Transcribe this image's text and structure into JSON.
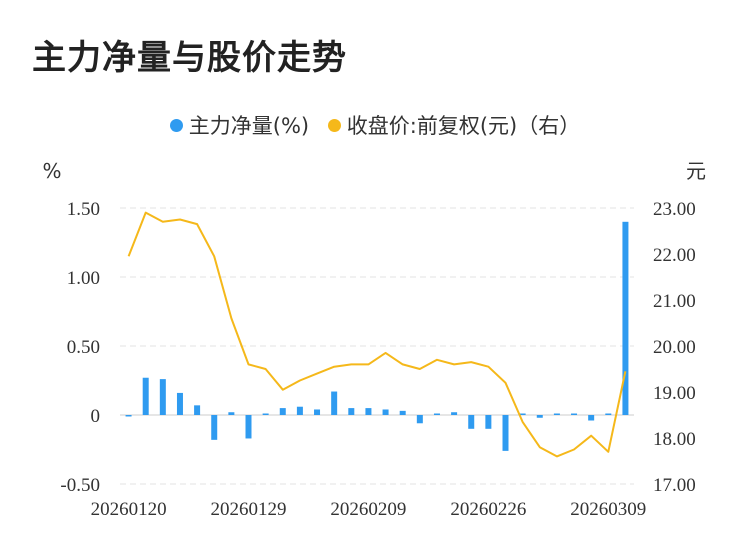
{
  "title": "主力净量与股价走势",
  "legend": {
    "bar_label": "主力净量(%)",
    "line_label": "收盘价:前复权(元)（右）"
  },
  "colors": {
    "bar": "#2f9bf0",
    "line": "#f5b81a",
    "grid": "#e3e3e3",
    "text": "#333333"
  },
  "chart_data": {
    "type": "bar+line",
    "title": "主力净量与股价走势",
    "left_unit": "%",
    "right_unit": "元",
    "ylim_left": [
      -0.5,
      1.5
    ],
    "ylim_right": [
      17.0,
      23.0
    ],
    "left_ticks": [
      "1.50",
      "1.00",
      "0.50",
      "0",
      "-0.50"
    ],
    "right_ticks": [
      "23.00",
      "22.00",
      "21.00",
      "20.00",
      "19.00",
      "18.00",
      "17.00"
    ],
    "x_tick_labels": [
      "20260120",
      "20260129",
      "20260209",
      "20260226",
      "20260309"
    ],
    "x_tick_indices": [
      0,
      7,
      14,
      21,
      28
    ],
    "n_points": 30,
    "series": [
      {
        "name": "主力净量(%)",
        "type": "bar",
        "axis": "left",
        "values": [
          -0.01,
          0.27,
          0.26,
          0.16,
          0.07,
          -0.18,
          0.02,
          -0.17,
          0.0,
          0.05,
          0.06,
          0.04,
          0.17,
          0.05,
          0.05,
          0.04,
          0.03,
          -0.06,
          0.01,
          0.02,
          -0.1,
          -0.1,
          -0.26,
          0.0,
          -0.02,
          0.01,
          0.01,
          -0.04,
          0.0,
          1.4
        ]
      },
      {
        "name": "收盘价:前复权(元)",
        "type": "line",
        "axis": "right",
        "values": [
          21.95,
          22.9,
          22.7,
          22.75,
          22.65,
          21.95,
          20.6,
          19.6,
          19.5,
          19.05,
          19.25,
          19.4,
          19.55,
          19.6,
          19.6,
          19.85,
          19.6,
          19.5,
          19.7,
          19.6,
          19.65,
          19.55,
          19.2,
          18.35,
          17.8,
          17.6,
          17.75,
          18.05,
          17.7,
          19.45
        ]
      }
    ]
  }
}
